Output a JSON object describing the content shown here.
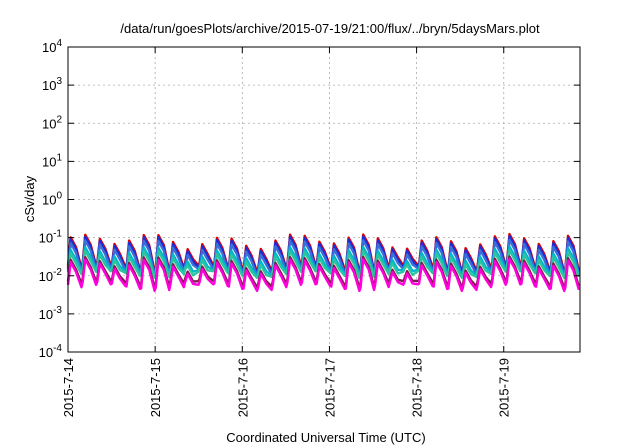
{
  "chart_data": {
    "type": "line",
    "title": "/data/run/goesPlots/archive/2015-07-19/21:00/flux/../bryn/5daysMars.plot",
    "xlabel": "Coordinated Universal Time (UTC)",
    "ylabel": "cSv/day",
    "yscale": "log",
    "ylim": [
      0.0001,
      10000
    ],
    "y_ticks": [
      {
        "value": 0.0001,
        "base": "10",
        "exp": "-4"
      },
      {
        "value": 0.001,
        "base": "10",
        "exp": "-3"
      },
      {
        "value": 0.01,
        "base": "10",
        "exp": "-2"
      },
      {
        "value": 0.1,
        "base": "10",
        "exp": "-1"
      },
      {
        "value": 1,
        "base": "10",
        "exp": "0"
      },
      {
        "value": 10,
        "base": "10",
        "exp": "1"
      },
      {
        "value": 100,
        "base": "10",
        "exp": "2"
      },
      {
        "value": 1000,
        "base": "10",
        "exp": "3"
      },
      {
        "value": 10000,
        "base": "10",
        "exp": "4"
      }
    ],
    "x_ticks": [
      "2015-7-14",
      "2015-7-15",
      "2015-7-16",
      "2015-7-17",
      "2015-7-18",
      "2015-7-19"
    ],
    "xlim": [
      "2015-07-14T00:00",
      "2015-07-19T21:00"
    ],
    "grid": true,
    "series": [
      {
        "color": "#dd0000",
        "peak": 0.085,
        "trough": 0.016
      },
      {
        "color": "#1f2bd6",
        "peak": 0.075,
        "trough": 0.014
      },
      {
        "color": "#3a6fd8",
        "peak": 0.06,
        "trough": 0.013
      },
      {
        "color": "#00b8cc",
        "peak": 0.04,
        "trough": 0.012
      },
      {
        "color": "#2ec4a0",
        "peak": 0.032,
        "trough": 0.011
      },
      {
        "color": "#7a1f4a",
        "peak": 0.022,
        "trough": 0.0062
      },
      {
        "color": "#ff00dd",
        "peak": 0.019,
        "trough": 0.005
      }
    ],
    "peaks_per_day": 6
  }
}
